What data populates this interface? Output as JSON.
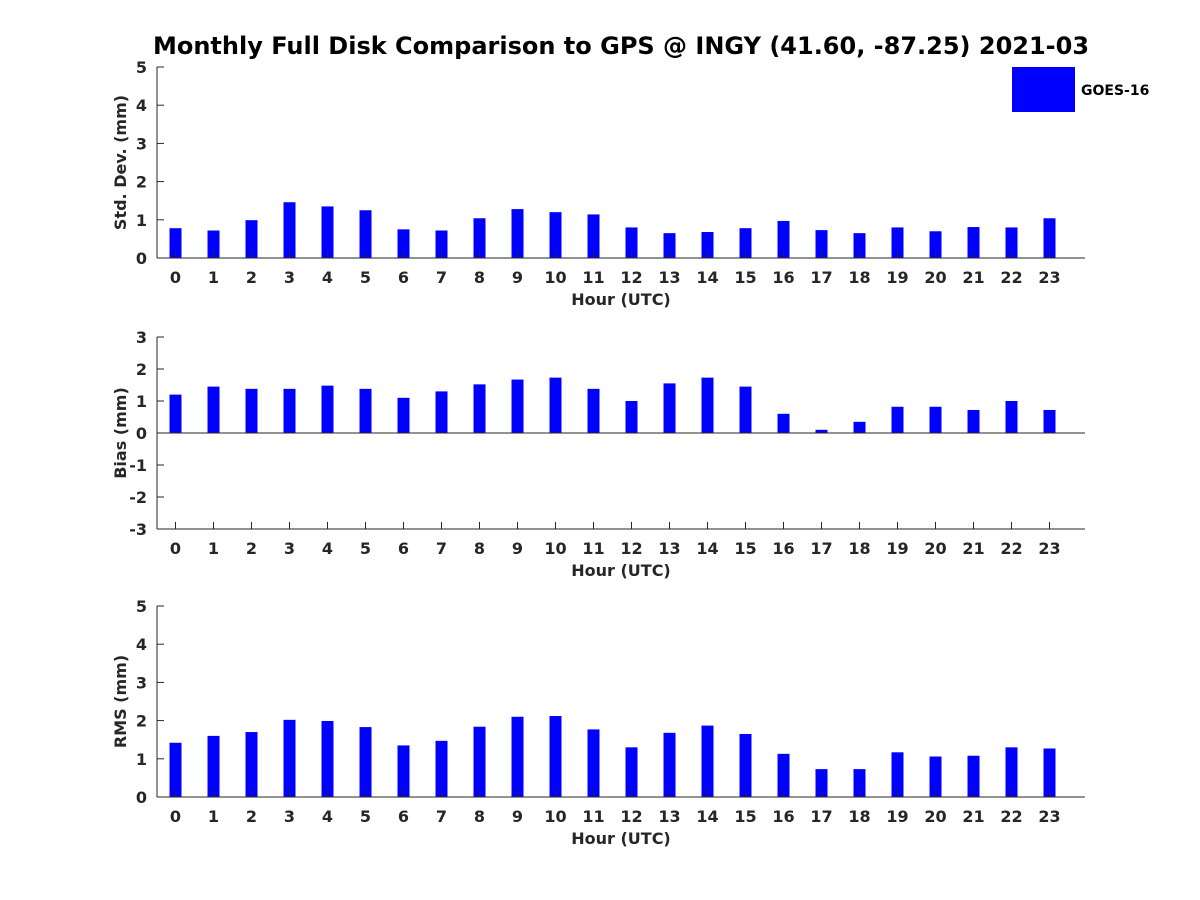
{
  "figure": {
    "title": "Monthly Full Disk Comparison to GPS @ INGY (41.60, -87.25) 2021-03"
  },
  "legend": {
    "label": "GOES-16",
    "color": "#0000ff",
    "placement": "top-right of first panel"
  },
  "chart_data": [
    {
      "type": "bar",
      "xlabel": "Hour (UTC)",
      "ylabel": "Std. Dev. (mm)",
      "categories": [
        "0",
        "1",
        "2",
        "3",
        "4",
        "5",
        "6",
        "7",
        "8",
        "9",
        "10",
        "11",
        "12",
        "13",
        "14",
        "15",
        "16",
        "17",
        "18",
        "19",
        "20",
        "21",
        "22",
        "23"
      ],
      "series": [
        {
          "name": "GOES-16",
          "color": "#0000ff",
          "values": [
            0.78,
            0.72,
            0.99,
            1.46,
            1.35,
            1.25,
            0.75,
            0.72,
            1.04,
            1.28,
            1.2,
            1.14,
            0.8,
            0.65,
            0.68,
            0.78,
            0.97,
            0.73,
            0.65,
            0.8,
            0.7,
            0.81,
            0.8,
            1.04
          ]
        }
      ],
      "ylim": [
        0,
        5
      ],
      "yticks": [
        "0",
        "1",
        "2",
        "3",
        "4",
        "5"
      ],
      "grid": false,
      "zero_line": false
    },
    {
      "type": "bar",
      "xlabel": "Hour (UTC)",
      "ylabel": "Bias (mm)",
      "categories": [
        "0",
        "1",
        "2",
        "3",
        "4",
        "5",
        "6",
        "7",
        "8",
        "9",
        "10",
        "11",
        "12",
        "13",
        "14",
        "15",
        "16",
        "17",
        "18",
        "19",
        "20",
        "21",
        "22",
        "23"
      ],
      "series": [
        {
          "name": "GOES-16",
          "color": "#0000ff",
          "values": [
            1.2,
            1.45,
            1.38,
            1.38,
            1.48,
            1.38,
            1.1,
            1.3,
            1.52,
            1.67,
            1.73,
            1.38,
            1.0,
            1.55,
            1.73,
            1.45,
            0.6,
            0.1,
            0.35,
            0.82,
            0.82,
            0.72,
            1.0,
            0.72
          ]
        }
      ],
      "ylim": [
        -3,
        3
      ],
      "yticks": [
        "-3",
        "-2",
        "-1",
        "0",
        "1",
        "2",
        "3"
      ],
      "grid": false,
      "zero_line": true
    },
    {
      "type": "bar",
      "xlabel": "Hour (UTC)",
      "ylabel": "RMS (mm)",
      "categories": [
        "0",
        "1",
        "2",
        "3",
        "4",
        "5",
        "6",
        "7",
        "8",
        "9",
        "10",
        "11",
        "12",
        "13",
        "14",
        "15",
        "16",
        "17",
        "18",
        "19",
        "20",
        "21",
        "22",
        "23"
      ],
      "series": [
        {
          "name": "GOES-16",
          "color": "#0000ff",
          "values": [
            1.42,
            1.6,
            1.7,
            2.02,
            1.99,
            1.83,
            1.35,
            1.47,
            1.84,
            2.1,
            2.12,
            1.77,
            1.3,
            1.68,
            1.87,
            1.65,
            1.13,
            0.73,
            0.73,
            1.17,
            1.06,
            1.08,
            1.3,
            1.27
          ]
        }
      ],
      "ylim": [
        0,
        5
      ],
      "yticks": [
        "0",
        "1",
        "2",
        "3",
        "4",
        "5"
      ],
      "grid": false,
      "zero_line": false
    }
  ]
}
